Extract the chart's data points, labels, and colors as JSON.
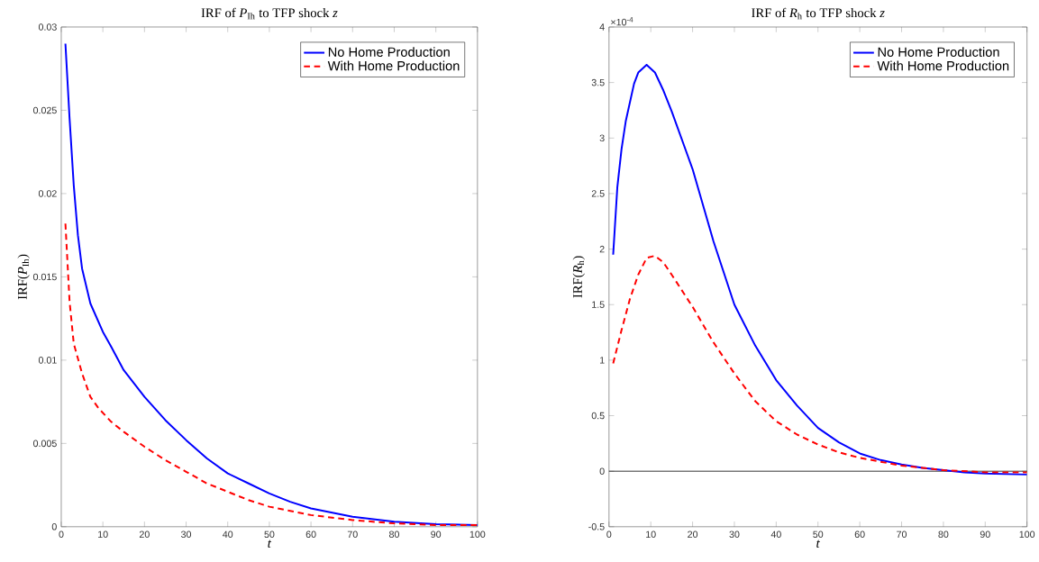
{
  "chart_data": [
    {
      "type": "line",
      "title": "IRF of *P*$_{Ih}$ to TFP shock *z*",
      "xlabel": "*t*",
      "ylabel": "IRF(*P*$_{Ih}$)",
      "xlim": [
        0,
        100
      ],
      "xticks": [
        0,
        10,
        20,
        30,
        40,
        50,
        60,
        70,
        80,
        90,
        100
      ],
      "ylim": [
        0,
        0.03
      ],
      "yticks": [
        0,
        0.005,
        0.01,
        0.015,
        0.02,
        0.025,
        0.03
      ],
      "legend": "top right",
      "marker": "none",
      "series": [
        {
          "name": "No Home Production",
          "color": "#0000ff",
          "line_style": "solid",
          "x": [
            1,
            2,
            3,
            4,
            5,
            7,
            10,
            12,
            15,
            20,
            25,
            30,
            35,
            40,
            45,
            50,
            55,
            60,
            70,
            80,
            90,
            100
          ],
          "values": [
            0.029,
            0.0245,
            0.0205,
            0.0175,
            0.0155,
            0.0134,
            0.0117,
            0.0108,
            0.0094,
            0.0078,
            0.0064,
            0.0052,
            0.0041,
            0.0032,
            0.0026,
            0.002,
            0.0015,
            0.0011,
            0.0006,
            0.0003,
            0.00015,
            0.0001
          ]
        },
        {
          "name": "With Home Production",
          "color": "#ff0000",
          "line_style": "dashed",
          "x": [
            1,
            2,
            3,
            5,
            7,
            9,
            12,
            15,
            20,
            25,
            30,
            35,
            40,
            45,
            50,
            60,
            70,
            80,
            90,
            100
          ],
          "values": [
            0.0182,
            0.0135,
            0.011,
            0.0092,
            0.0078,
            0.0071,
            0.0063,
            0.0057,
            0.0048,
            0.004,
            0.0033,
            0.0026,
            0.0021,
            0.0016,
            0.0012,
            0.0007,
            0.0004,
            0.0002,
            0.0001,
            0.0001
          ]
        }
      ]
    },
    {
      "type": "line",
      "title": "IRF of *R*$_{h}$ to TFP shock *z*",
      "xlabel": "*t*",
      "ylabel": "IRF(*R*$_{h}$)",
      "annotations": [
        "×10$^{-4}$"
      ],
      "xlim": [
        0,
        100
      ],
      "xticks": [
        0,
        10,
        20,
        30,
        40,
        50,
        60,
        70,
        80,
        90,
        100
      ],
      "ylim": [
        -0.5,
        4
      ],
      "yticks": [
        -0.5,
        0,
        0.5,
        1,
        1.5,
        2,
        2.5,
        3,
        3.5,
        4
      ],
      "legend": "top right",
      "marker": "none",
      "ref_lines": [
        {
          "axis": "y",
          "value": 0,
          "color": "#000000"
        }
      ],
      "series": [
        {
          "name": "No Home Production",
          "color": "#0000ff",
          "line_style": "solid",
          "x": [
            1,
            2,
            3,
            4,
            5,
            6,
            7,
            9,
            11,
            13,
            15,
            20,
            25,
            30,
            35,
            40,
            45,
            50,
            55,
            60,
            65,
            70,
            75,
            80,
            85,
            90,
            100
          ],
          "values": [
            1.95,
            2.56,
            2.9,
            3.15,
            3.32,
            3.49,
            3.59,
            3.66,
            3.59,
            3.43,
            3.24,
            2.72,
            2.07,
            1.5,
            1.13,
            0.82,
            0.59,
            0.39,
            0.26,
            0.16,
            0.1,
            0.06,
            0.03,
            0.01,
            -0.01,
            -0.02,
            -0.03
          ]
        },
        {
          "name": "With Home Production",
          "color": "#ff0000",
          "line_style": "dashed",
          "x": [
            1,
            3,
            5,
            7,
            9,
            11,
            13,
            15,
            20,
            25,
            30,
            35,
            40,
            45,
            50,
            55,
            60,
            70,
            80,
            90,
            100
          ],
          "values": [
            0.97,
            1.27,
            1.55,
            1.77,
            1.92,
            1.94,
            1.88,
            1.77,
            1.48,
            1.16,
            0.88,
            0.63,
            0.45,
            0.33,
            0.24,
            0.17,
            0.12,
            0.05,
            0.01,
            -0.01,
            -0.01
          ]
        }
      ]
    }
  ]
}
